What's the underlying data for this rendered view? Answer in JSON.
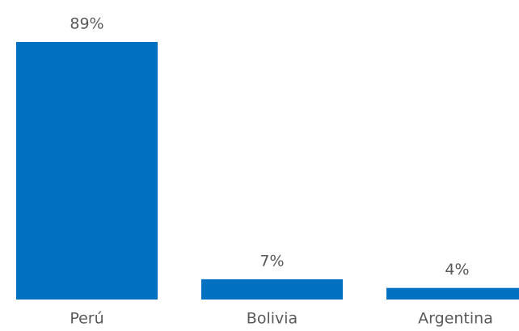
{
  "chart_data": {
    "type": "bar",
    "categories": [
      "Perú",
      "Bolivia",
      "Argentina"
    ],
    "values": [
      89,
      7,
      4
    ],
    "value_labels": [
      "89%",
      "7%",
      "4%"
    ],
    "color": "#0070c0"
  }
}
